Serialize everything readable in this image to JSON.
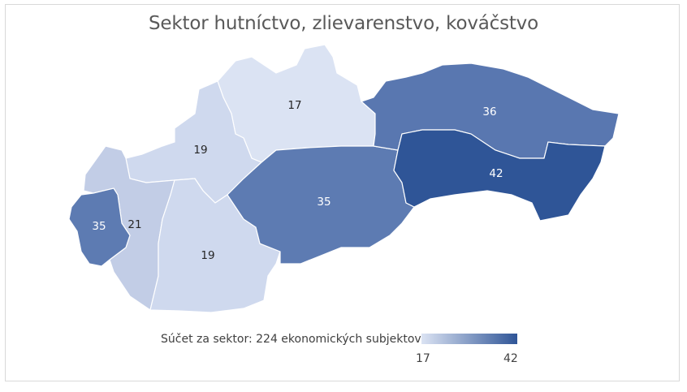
{
  "title": "Sektor hutníctvo, zlievarenstvo, kováčstvo",
  "regions": [
    {
      "id": "zilina",
      "value": 17,
      "color": "#dbe3f3",
      "label_color": "#262626"
    },
    {
      "id": "trencin",
      "value": 19,
      "color": "#cfd9ee",
      "label_color": "#262626"
    },
    {
      "id": "trnava",
      "value": 21,
      "color": "#c2cde6",
      "label_color": "#262626"
    },
    {
      "id": "bratislava",
      "value": 35,
      "color": "#5d7bb2",
      "label_color": "#ffffff"
    },
    {
      "id": "nitra",
      "value": 19,
      "color": "#cfd9ee",
      "label_color": "#262626"
    },
    {
      "id": "banska-bystrica",
      "value": 35,
      "color": "#5d7bb2",
      "label_color": "#ffffff"
    },
    {
      "id": "presov",
      "value": 36,
      "color": "#5977b0",
      "label_color": "#ffffff"
    },
    {
      "id": "kosice",
      "value": 42,
      "color": "#2f5597",
      "label_color": "#ffffff"
    }
  ],
  "legend": {
    "text": "Súčet za sektor: 224 ekonomických subjektov.",
    "min": "17",
    "max": "42",
    "min_color": "#dbe3f3",
    "max_color": "#2f5597"
  }
}
